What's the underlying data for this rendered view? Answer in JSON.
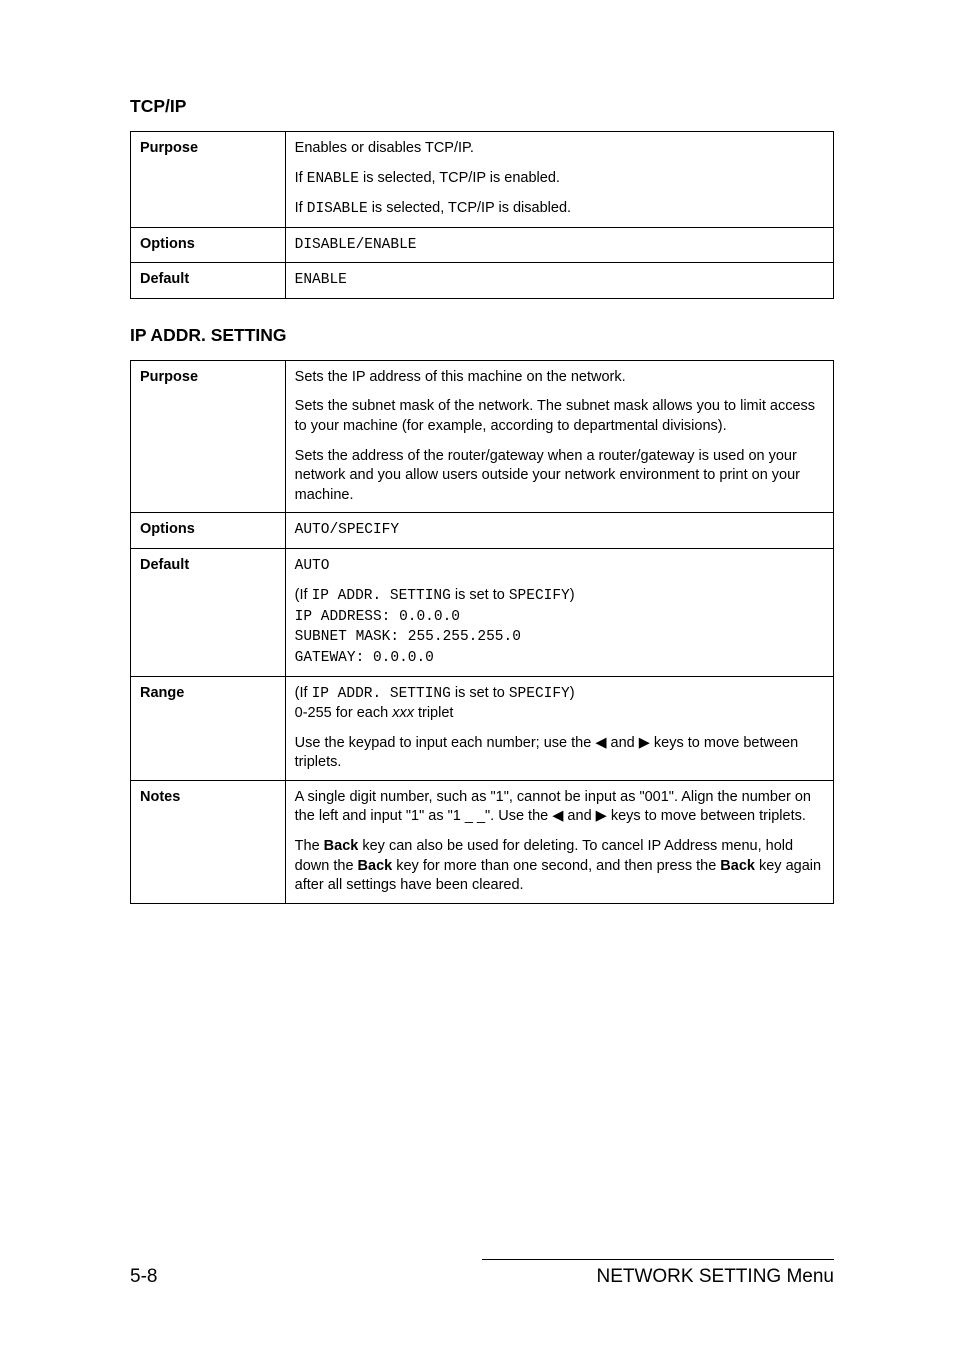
{
  "section1": {
    "heading": "TCP/IP",
    "table": {
      "purpose": {
        "label": "Purpose",
        "p1": "Enables or disables TCP/IP.",
        "p2_before": "If ",
        "p2_mono": "ENABLE",
        "p2_after": " is selected, TCP/IP is enabled.",
        "p3_before": "If ",
        "p3_mono": "DISABLE",
        "p3_after": " is selected, TCP/IP is disabled."
      },
      "options": {
        "label": "Options",
        "value": "DISABLE/ENABLE"
      },
      "default": {
        "label": "Default",
        "value": "ENABLE"
      }
    }
  },
  "section2": {
    "heading": "IP ADDR. SETTING",
    "table": {
      "purpose": {
        "label": "Purpose",
        "p1": "Sets the IP address of this machine on the network.",
        "p2": "Sets the subnet mask of the network. The subnet mask allows you to limit access to your machine (for example, according to departmental divisions).",
        "p3": "Sets the address of the router/gateway when a router/gateway is used on your network and you allow users outside your network environment to print on your machine."
      },
      "options": {
        "label": "Options",
        "value": "AUTO/SPECIFY"
      },
      "default": {
        "label": "Default",
        "line1": "AUTO",
        "if_before": "(If ",
        "if_mono": "IP ADDR. SETTING",
        "if_mid": " is set to ",
        "if_mono2": "SPECIFY",
        "if_after": ")",
        "line3": "IP ADDRESS: 0.0.0.0",
        "line4": "SUBNET MASK: 255.255.255.0",
        "line5": "GATEWAY: 0.0.0.0"
      },
      "range": {
        "label": "Range",
        "if_before": "(If ",
        "if_mono": "IP ADDR. SETTING",
        "if_mid": " is set to ",
        "if_mono2": "SPECIFY",
        "if_after": ")",
        "l2_before": "0-255 for each ",
        "l2_italic": "xxx",
        "l2_after": " triplet",
        "p2_before": "Use the keypad to input each number; use the ",
        "p2_tri1": "◀",
        "p2_mid": " and ",
        "p2_tri2": "▶",
        "p2_after": " keys to move between triplets."
      },
      "notes": {
        "label": "Notes",
        "p1_a": "A single digit number, such as \"1\", cannot be input as \"001\". Align the number on the left and input \"1\" as \"1 _ _\". Use the ",
        "p1_tri1": "◀",
        "p1_mid": " and ",
        "p1_tri2": "▶",
        "p1_b": " keys to move between triplets.",
        "p2_a": "The ",
        "p2_back1": "Back",
        "p2_b": " key can also be used for deleting. To cancel IP Address menu, hold down the ",
        "p2_back2": "Back",
        "p2_c": " key for more than one second, and then press the ",
        "p2_back3": "Back",
        "p2_d": " key again after all settings have been cleared."
      }
    }
  },
  "footer": {
    "page": "5-8",
    "title": "NETWORK SETTING Menu"
  }
}
